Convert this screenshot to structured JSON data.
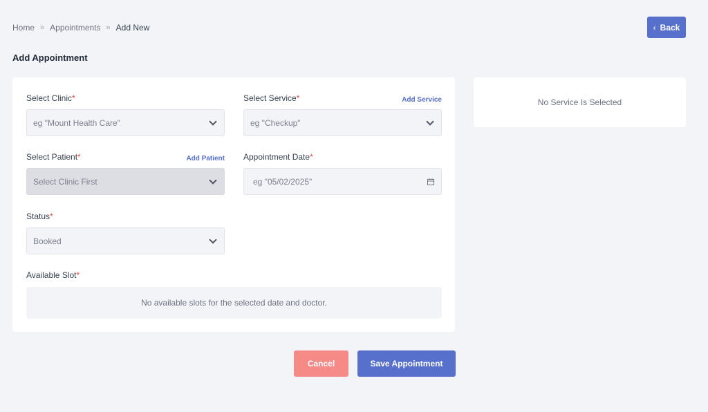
{
  "breadcrumb": {
    "items": [
      "Home",
      "Appointments",
      "Add New"
    ],
    "separator": "»"
  },
  "back_button": {
    "label": "Back",
    "icon": "chevron-left-icon"
  },
  "page_title": "Add Appointment",
  "form": {
    "clinic": {
      "label": "Select Clinic",
      "required": "*",
      "placeholder": "eg \"Mount Health Care\""
    },
    "service": {
      "label": "Select Service",
      "required": "*",
      "placeholder": "eg \"Checkup\"",
      "link": "Add Service"
    },
    "patient": {
      "label": "Select Patient",
      "required": "*",
      "placeholder": "Select Clinic First",
      "link": "Add Patient"
    },
    "date": {
      "label": "Appointment Date",
      "required": "*",
      "placeholder": "eg \"05/02/2025\""
    },
    "status": {
      "label": "Status",
      "required": "*",
      "value": "Booked"
    },
    "slot": {
      "label": "Available Slot",
      "required": "*",
      "empty_text": "No available slots for the selected date and doctor."
    }
  },
  "service_panel": {
    "empty_text": "No Service Is Selected"
  },
  "actions": {
    "cancel": "Cancel",
    "save": "Save Appointment"
  },
  "colors": {
    "primary": "#5670cc",
    "cancel": "#f58a87",
    "required": "#ef4444",
    "background": "#f3f4f8"
  }
}
